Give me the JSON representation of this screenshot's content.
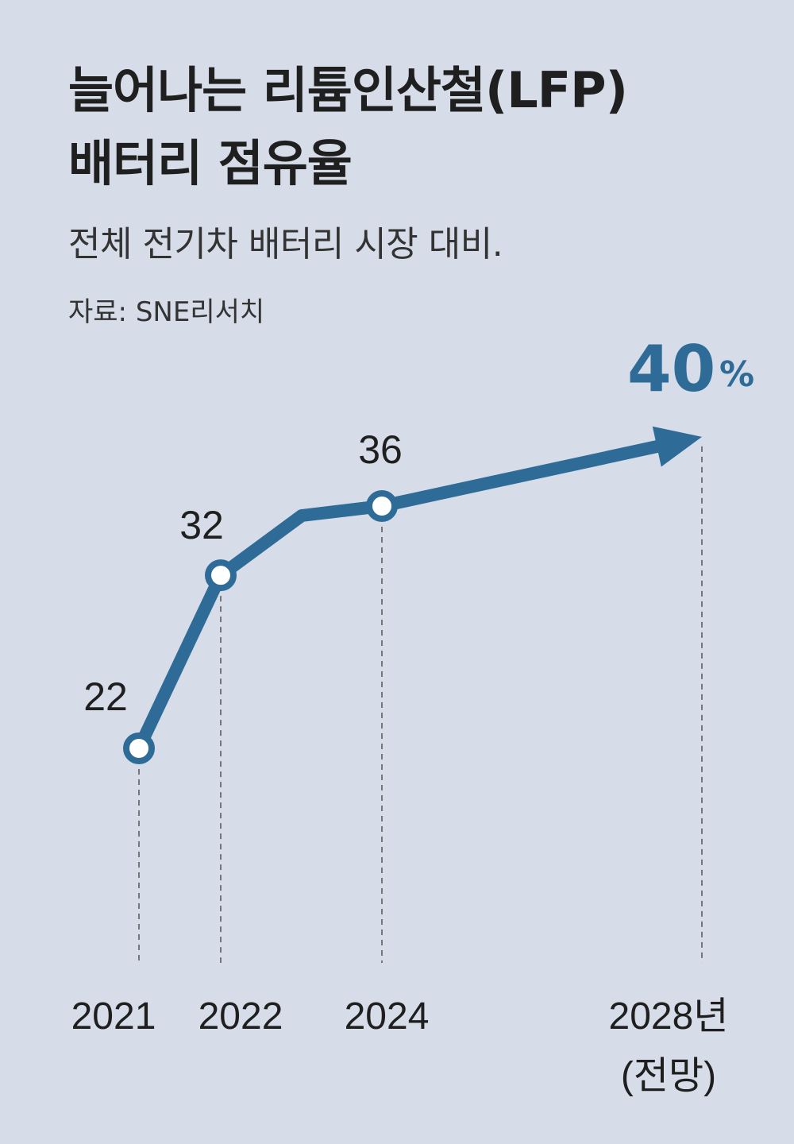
{
  "header": {
    "title_line1": "늘어나는 리튬인산철(LFP)",
    "title_line2": "배터리 점유율",
    "subtitle": "전체 전기차 배터리 시장 대비.",
    "source": "자료: SNE리서치"
  },
  "chart_data": {
    "type": "line",
    "title": "늘어나는 리튬인산철(LFP) 배터리 점유율",
    "subtitle": "전체 전기차 배터리 시장 대비.",
    "source": "자료: SNE리서치",
    "unit": "%",
    "x_labels": [
      "2021",
      "2022",
      "2024",
      "2028년",
      "(전망)"
    ],
    "points": [
      {
        "x": 2021,
        "y": 22,
        "label": "22"
      },
      {
        "x": 2022,
        "y": 32,
        "label": "32"
      },
      {
        "x": 2024,
        "y": 36,
        "label": "36"
      },
      {
        "x": 2028,
        "y": 40,
        "label": "40"
      }
    ],
    "color": "#2f6b97",
    "projected_from": 2024
  }
}
